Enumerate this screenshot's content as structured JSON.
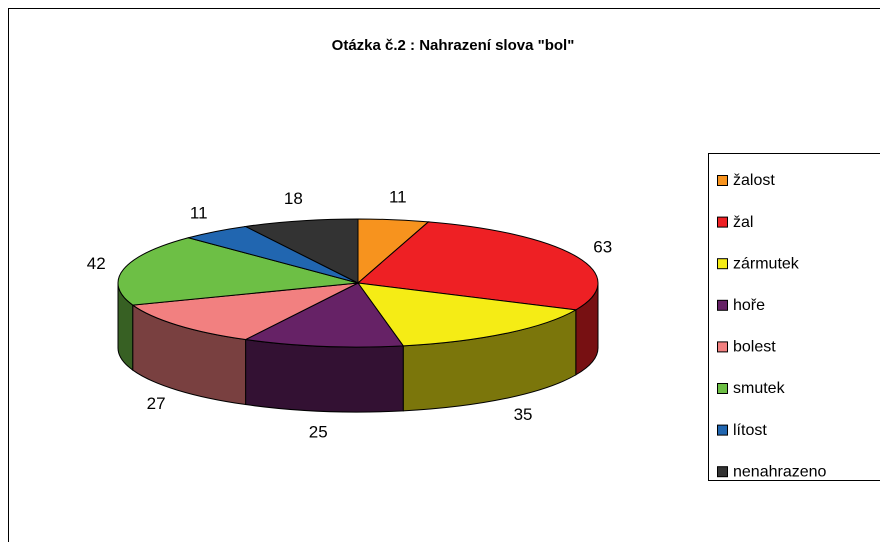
{
  "chart_data": {
    "type": "pie",
    "title": "Otázka č.2 : Nahrazení slova \"bol\"",
    "categories": [
      "žalost",
      "žal",
      "zármutek",
      "hoře",
      "bolest",
      "smutek",
      "lítost",
      "nenahrazeno"
    ],
    "values": [
      11,
      63,
      35,
      25,
      27,
      42,
      11,
      18
    ],
    "colors": [
      "#f7931e",
      "#ee2024",
      "#f5ec15",
      "#662266",
      "#f28080",
      "#6dbf45",
      "#2166b0",
      "#333333"
    ]
  }
}
